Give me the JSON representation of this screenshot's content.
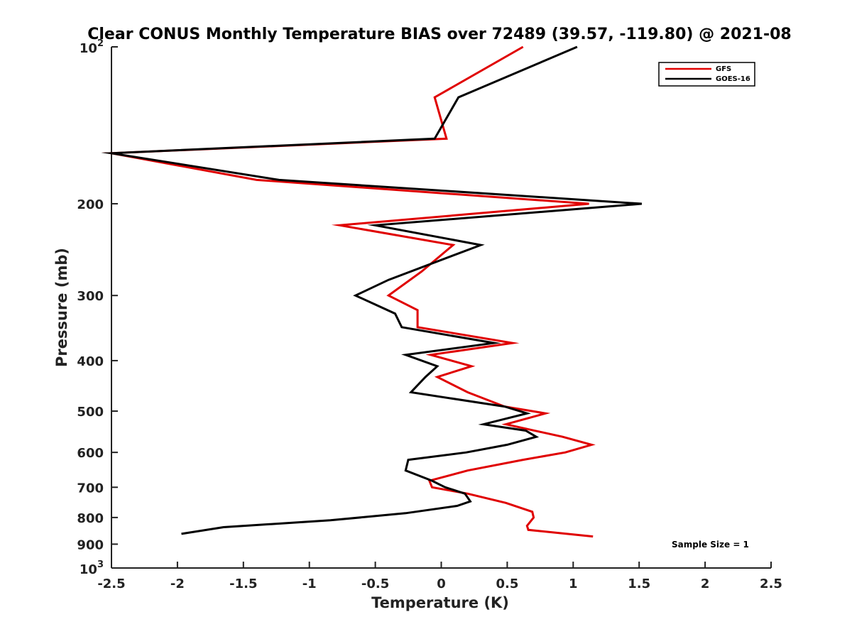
{
  "chart_data": {
    "type": "line",
    "title": "Clear CONUS Monthly Temperature BIAS over 72489 (39.57, -119.80) @ 2021-08",
    "xlabel": "Temperature (K)",
    "ylabel": "Pressure (mb)",
    "xlim": [
      -2.5,
      2.5
    ],
    "ylim": [
      100,
      1000
    ],
    "y_scale": "log",
    "y_reversed": true,
    "x_ticks": [
      -2.5,
      -2,
      -1.5,
      -1,
      -0.5,
      0,
      0.5,
      1,
      1.5,
      2,
      2.5
    ],
    "x_tick_labels": [
      "-2.5",
      "-2",
      "-1.5",
      "-1",
      "-0.5",
      "0",
      "0.5",
      "1",
      "1.5",
      "2",
      "2.5"
    ],
    "y_ticks": [
      200,
      300,
      400,
      500,
      600,
      700,
      800,
      900
    ],
    "y_tick_labels": [
      "200",
      "300",
      "400",
      "500",
      "600",
      "700",
      "800",
      "900"
    ],
    "y_end_ticks": [
      {
        "value": 100,
        "base": "10",
        "exp": "2"
      },
      {
        "value": 1000,
        "base": "10",
        "exp": "3"
      }
    ],
    "legend_position": "top-right",
    "grid": false,
    "annotation": "Sample Size = 1",
    "series": [
      {
        "name": "GFS",
        "color": "#e00000",
        "points": [
          [
            0.62,
            100
          ],
          [
            -0.05,
            125
          ],
          [
            0.04,
            150
          ],
          [
            -2.5,
            160
          ],
          [
            -1.4,
            180
          ],
          [
            1.12,
            200
          ],
          [
            -0.77,
            220
          ],
          [
            0.09,
            240
          ],
          [
            -0.15,
            270
          ],
          [
            -0.4,
            300
          ],
          [
            -0.18,
            320
          ],
          [
            -0.18,
            345
          ],
          [
            0.54,
            370
          ],
          [
            -0.08,
            390
          ],
          [
            0.23,
            410
          ],
          [
            -0.03,
            430
          ],
          [
            0.2,
            460
          ],
          [
            0.48,
            490
          ],
          [
            0.79,
            505
          ],
          [
            0.49,
            530
          ],
          [
            0.92,
            560
          ],
          [
            1.14,
            580
          ],
          [
            0.94,
            600
          ],
          [
            0.62,
            620
          ],
          [
            0.2,
            650
          ],
          [
            -0.09,
            680
          ],
          [
            -0.07,
            700
          ],
          [
            0.2,
            720
          ],
          [
            0.49,
            750
          ],
          [
            0.69,
            780
          ],
          [
            0.7,
            800
          ],
          [
            0.65,
            830
          ],
          [
            0.66,
            845
          ],
          [
            1.15,
            870
          ]
        ]
      },
      {
        "name": "GOES-16",
        "color": "#000000",
        "points": [
          [
            1.03,
            100
          ],
          [
            0.13,
            125
          ],
          [
            -0.05,
            150
          ],
          [
            -2.5,
            160
          ],
          [
            -1.23,
            180
          ],
          [
            1.52,
            200
          ],
          [
            -0.5,
            220
          ],
          [
            0.3,
            240
          ],
          [
            -0.4,
            280
          ],
          [
            -0.65,
            300
          ],
          [
            -0.35,
            325
          ],
          [
            -0.3,
            345
          ],
          [
            0.4,
            370
          ],
          [
            -0.27,
            390
          ],
          [
            -0.03,
            410
          ],
          [
            -0.12,
            430
          ],
          [
            -0.23,
            460
          ],
          [
            0.48,
            490
          ],
          [
            0.65,
            505
          ],
          [
            0.32,
            530
          ],
          [
            0.64,
            545
          ],
          [
            0.72,
            560
          ],
          [
            0.5,
            580
          ],
          [
            0.19,
            600
          ],
          [
            -0.25,
            620
          ],
          [
            -0.27,
            650
          ],
          [
            -0.07,
            680
          ],
          [
            0.03,
            700
          ],
          [
            0.18,
            720
          ],
          [
            0.22,
            745
          ],
          [
            0.12,
            760
          ],
          [
            -0.27,
            785
          ],
          [
            -0.84,
            810
          ],
          [
            -1.65,
            835
          ],
          [
            -1.97,
            860
          ]
        ]
      }
    ]
  }
}
